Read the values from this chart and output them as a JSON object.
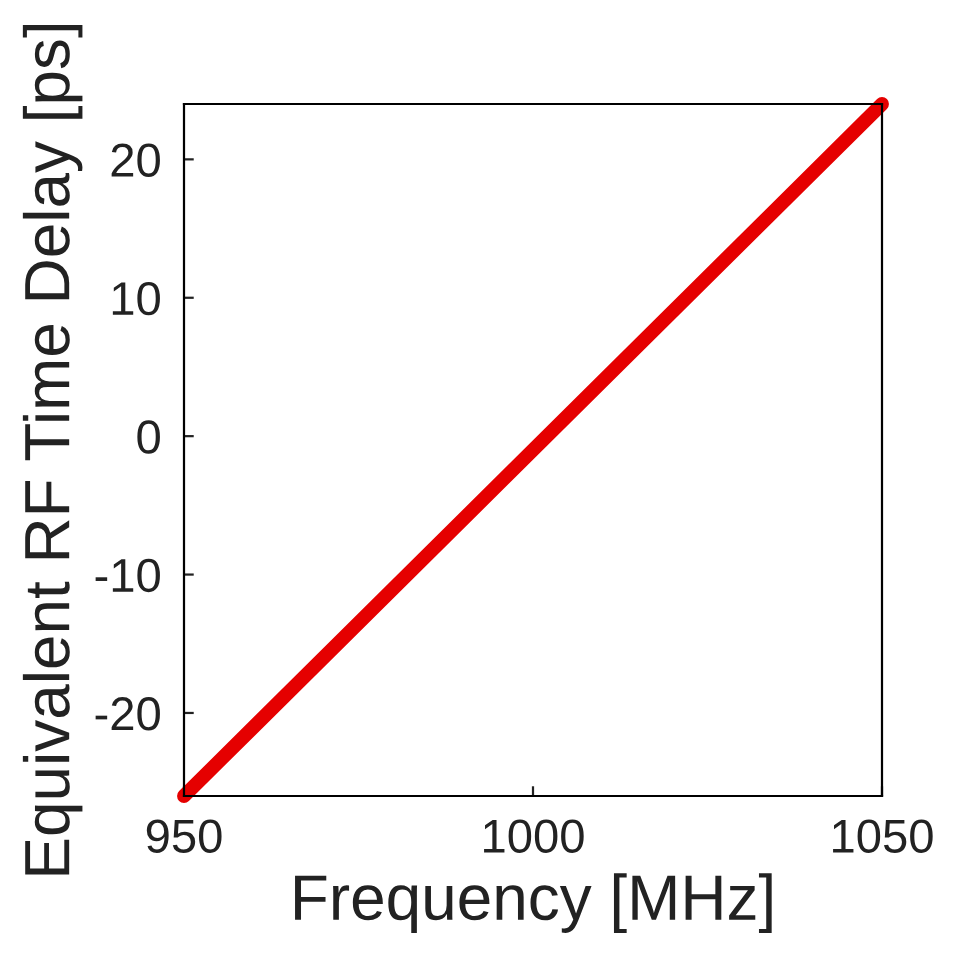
{
  "chart_data": {
    "type": "line",
    "xlabel": "Frequency [MHz]",
    "ylabel": "Equivalent RF Time Delay [ps]",
    "x": [
      950,
      1050
    ],
    "series": [
      {
        "color": "#e50000",
        "values": [
          -26,
          24
        ]
      }
    ],
    "xlim": [
      950,
      1050
    ],
    "xticks": [
      950,
      1000,
      1050
    ],
    "ylim": [
      -26,
      24
    ],
    "yticks": [
      -20,
      -10,
      0,
      10,
      20
    ],
    "grid": false,
    "marker": "none",
    "line_style": "solid"
  }
}
